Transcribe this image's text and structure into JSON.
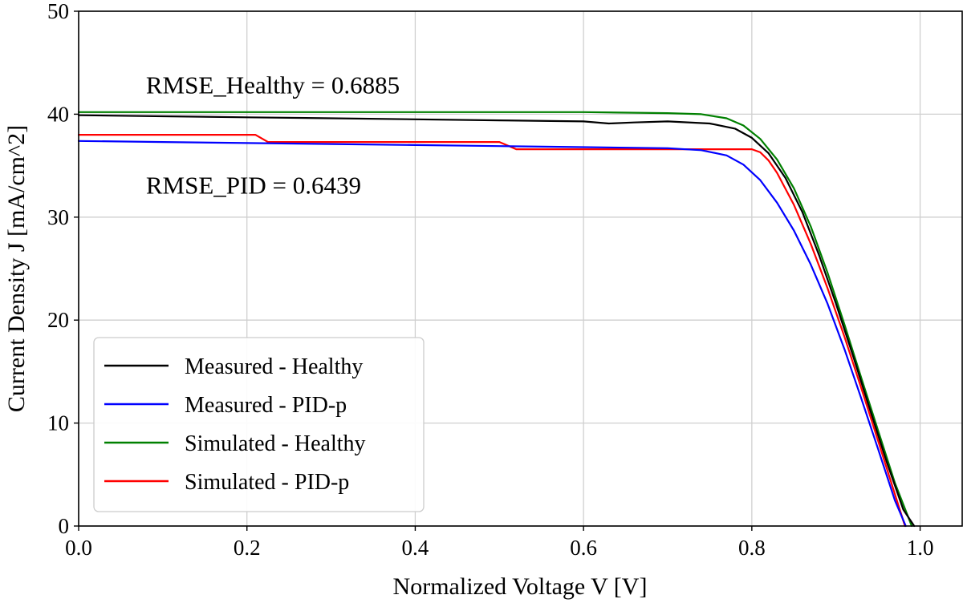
{
  "chart_data": {
    "type": "line",
    "title": "",
    "xlabel": "Normalized Voltage V [V]",
    "ylabel": "Current Density J [mA/cm^2]",
    "xlim": [
      0.0,
      1.05
    ],
    "ylim": [
      0,
      50
    ],
    "xticks": [
      "0.0",
      "0.2",
      "0.4",
      "0.6",
      "0.8",
      "1.0"
    ],
    "yticks": [
      "0",
      "10",
      "20",
      "30",
      "40",
      "50"
    ],
    "grid": true,
    "legend_position": "lower-left",
    "annotations": [
      {
        "text": "RMSE_Healthy = 0.6885",
        "x": 0.08,
        "y": 42.0
      },
      {
        "text": "RMSE_PID = 0.6439",
        "x": 0.08,
        "y": 32.3
      }
    ],
    "series": [
      {
        "name": "Measured - Healthy",
        "color": "#000000",
        "x": [
          0.0,
          0.1,
          0.2,
          0.3,
          0.4,
          0.5,
          0.6,
          0.63,
          0.66,
          0.7,
          0.75,
          0.78,
          0.8,
          0.82,
          0.84,
          0.86,
          0.88,
          0.9,
          0.92,
          0.94,
          0.96,
          0.98,
          0.993
        ],
        "y": [
          39.9,
          39.8,
          39.7,
          39.6,
          39.5,
          39.4,
          39.3,
          39.1,
          39.2,
          39.3,
          39.1,
          38.6,
          37.7,
          36.2,
          33.8,
          30.5,
          26.3,
          21.6,
          16.6,
          11.4,
          6.3,
          1.6,
          0.0
        ]
      },
      {
        "name": "Measured - PID-p",
        "color": "#0000ff",
        "x": [
          0.0,
          0.1,
          0.2,
          0.3,
          0.4,
          0.5,
          0.6,
          0.7,
          0.74,
          0.77,
          0.79,
          0.81,
          0.83,
          0.85,
          0.87,
          0.89,
          0.91,
          0.93,
          0.95,
          0.97,
          0.983
        ],
        "y": [
          37.4,
          37.3,
          37.2,
          37.1,
          37.0,
          36.9,
          36.8,
          36.7,
          36.5,
          36.0,
          35.1,
          33.6,
          31.4,
          28.7,
          25.4,
          21.6,
          17.2,
          12.4,
          7.5,
          2.5,
          0.0
        ]
      },
      {
        "name": "Simulated - Healthy",
        "color": "#008000",
        "x": [
          0.0,
          0.1,
          0.2,
          0.3,
          0.4,
          0.5,
          0.6,
          0.7,
          0.74,
          0.77,
          0.79,
          0.81,
          0.83,
          0.85,
          0.87,
          0.89,
          0.91,
          0.93,
          0.95,
          0.97,
          0.99
        ],
        "y": [
          40.2,
          40.2,
          40.2,
          40.2,
          40.2,
          40.2,
          40.2,
          40.1,
          40.0,
          39.6,
          38.9,
          37.6,
          35.6,
          32.8,
          29.1,
          24.6,
          19.6,
          14.4,
          9.3,
          4.2,
          0.0
        ]
      },
      {
        "name": "Simulated - PID-p",
        "color": "#ff0000",
        "x": [
          0.0,
          0.21,
          0.225,
          0.5,
          0.52,
          0.7,
          0.75,
          0.8,
          0.81,
          0.82,
          0.83,
          0.85,
          0.87,
          0.89,
          0.91,
          0.93,
          0.95,
          0.97,
          0.982
        ],
        "y": [
          38.0,
          38.0,
          37.3,
          37.3,
          36.6,
          36.6,
          36.6,
          36.6,
          36.3,
          35.5,
          34.3,
          31.2,
          27.4,
          23.1,
          18.4,
          13.4,
          8.3,
          3.1,
          0.0
        ]
      }
    ]
  }
}
